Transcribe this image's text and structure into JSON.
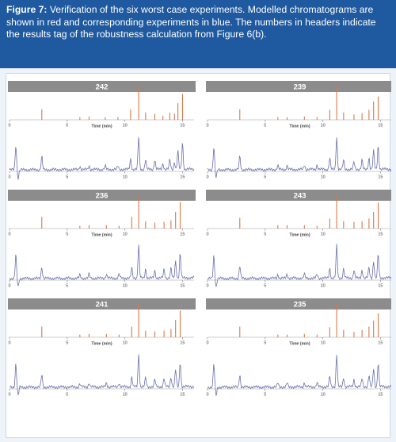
{
  "caption": {
    "label": "Figure 7:",
    "text": " Verification of the six worst case experiments. Modelled chromatograms are shown in red and corresponding experiments in blue. The numbers in headers indicate the results tag of the robustness calculation from Figure 6(b)."
  },
  "colors": {
    "header_bg": "#1f5aa0",
    "modelled": "#d9784a",
    "experimental": "#6a6fae",
    "tag_bg": "#8c8c8c"
  },
  "chart_data": {
    "type": "line",
    "x_axis": {
      "label": "Time (min)",
      "ticks": [
        "0",
        "5",
        "10",
        "15"
      ],
      "range": [
        0,
        16
      ]
    },
    "panels": [
      {
        "tag": "242",
        "modelled": {
          "x": [
            2.8,
            6.1,
            6.9,
            8.3,
            9.4,
            10.5,
            11.2,
            11.8,
            12.6,
            13.3,
            13.9,
            14.3,
            14.6,
            15.0
          ],
          "y": [
            0.32,
            0.08,
            0.1,
            0.08,
            0.08,
            0.32,
            1.0,
            0.22,
            0.18,
            0.12,
            0.22,
            0.18,
            0.5,
            0.78
          ]
        },
        "experimental": {
          "x": [
            0.55,
            0.75,
            2.8,
            6.1,
            6.9,
            8.3,
            9.4,
            10.5,
            11.2,
            11.8,
            12.6,
            13.3,
            13.9,
            14.3,
            14.6,
            15.0
          ],
          "y": [
            0.75,
            -0.25,
            0.4,
            0.1,
            0.12,
            0.1,
            0.1,
            0.32,
            0.98,
            0.3,
            0.28,
            0.18,
            0.3,
            0.22,
            0.55,
            0.8
          ]
        }
      },
      {
        "tag": "239",
        "modelled": {
          "x": [
            2.8,
            6.1,
            6.9,
            8.4,
            9.5,
            10.6,
            11.2,
            11.8,
            12.7,
            13.4,
            14.0,
            14.4,
            14.8
          ],
          "y": [
            0.32,
            0.08,
            0.08,
            0.1,
            0.08,
            0.3,
            1.0,
            0.22,
            0.16,
            0.2,
            0.3,
            0.55,
            0.7
          ]
        },
        "experimental": {
          "x": [
            0.55,
            0.75,
            2.8,
            6.1,
            6.9,
            8.4,
            9.5,
            10.6,
            11.2,
            11.8,
            12.7,
            13.4,
            14.0,
            14.4,
            14.8
          ],
          "y": [
            0.7,
            -0.25,
            0.4,
            0.12,
            0.12,
            0.14,
            0.14,
            0.35,
            0.98,
            0.28,
            0.22,
            0.28,
            0.35,
            0.55,
            0.72
          ]
        }
      },
      {
        "tag": "236",
        "modelled": {
          "x": [
            2.8,
            6.1,
            6.9,
            8.4,
            9.5,
            10.6,
            11.2,
            11.8,
            12.6,
            13.4,
            14.0,
            14.4,
            14.8
          ],
          "y": [
            0.35,
            0.08,
            0.1,
            0.1,
            0.08,
            0.35,
            1.0,
            0.22,
            0.18,
            0.2,
            0.25,
            0.5,
            0.8
          ]
        },
        "experimental": {
          "x": [
            0.55,
            0.75,
            2.8,
            6.1,
            6.9,
            8.4,
            9.5,
            10.6,
            11.2,
            11.8,
            12.6,
            13.4,
            14.0,
            14.4,
            14.8
          ],
          "y": [
            0.72,
            -0.25,
            0.35,
            0.1,
            0.12,
            0.12,
            0.12,
            0.3,
            0.98,
            0.28,
            0.22,
            0.25,
            0.3,
            0.5,
            0.75
          ]
        }
      },
      {
        "tag": "243",
        "modelled": {
          "x": [
            2.8,
            6.1,
            6.9,
            8.4,
            9.5,
            10.6,
            11.2,
            11.8,
            12.7,
            13.4,
            14.0,
            14.4,
            14.8
          ],
          "y": [
            0.32,
            0.1,
            0.1,
            0.1,
            0.08,
            0.3,
            1.0,
            0.22,
            0.2,
            0.22,
            0.3,
            0.5,
            0.78
          ]
        },
        "experimental": {
          "x": [
            0.55,
            0.75,
            2.8,
            6.1,
            6.9,
            8.4,
            9.5,
            10.6,
            11.2,
            11.8,
            12.7,
            13.4,
            14.0,
            14.4,
            14.8
          ],
          "y": [
            0.7,
            -0.25,
            0.38,
            0.12,
            0.12,
            0.12,
            0.12,
            0.3,
            0.98,
            0.28,
            0.24,
            0.25,
            0.32,
            0.5,
            0.72
          ]
        }
      },
      {
        "tag": "241",
        "modelled": {
          "x": [
            2.8,
            6.1,
            6.9,
            8.4,
            9.5,
            10.6,
            11.2,
            11.8,
            12.6,
            13.4,
            14.0,
            14.4,
            14.8
          ],
          "y": [
            0.32,
            0.08,
            0.1,
            0.1,
            0.08,
            0.32,
            1.0,
            0.2,
            0.18,
            0.2,
            0.25,
            0.52,
            0.8
          ]
        },
        "experimental": {
          "x": [
            0.55,
            0.75,
            2.8,
            6.1,
            6.9,
            8.4,
            9.5,
            10.6,
            11.2,
            11.8,
            12.6,
            13.4,
            14.0,
            14.4,
            14.8
          ],
          "y": [
            0.72,
            -0.25,
            0.38,
            0.1,
            0.12,
            0.12,
            0.12,
            0.3,
            0.98,
            0.28,
            0.22,
            0.25,
            0.3,
            0.52,
            0.75
          ]
        }
      },
      {
        "tag": "235",
        "modelled": {
          "x": [
            2.8,
            6.1,
            6.9,
            8.4,
            9.5,
            10.6,
            11.2,
            11.8,
            12.7,
            13.4,
            14.0,
            14.4,
            14.8
          ],
          "y": [
            0.32,
            0.08,
            0.08,
            0.1,
            0.08,
            0.3,
            1.0,
            0.22,
            0.16,
            0.22,
            0.32,
            0.5,
            0.72
          ]
        },
        "experimental": {
          "x": [
            0.55,
            0.75,
            2.8,
            6.1,
            6.9,
            8.4,
            9.5,
            10.6,
            11.2,
            11.8,
            12.7,
            13.4,
            14.0,
            14.4,
            14.8
          ],
          "y": [
            0.7,
            -0.25,
            0.38,
            0.12,
            0.12,
            0.12,
            0.12,
            0.32,
            0.98,
            0.28,
            0.22,
            0.25,
            0.35,
            0.55,
            0.72
          ]
        }
      }
    ]
  }
}
